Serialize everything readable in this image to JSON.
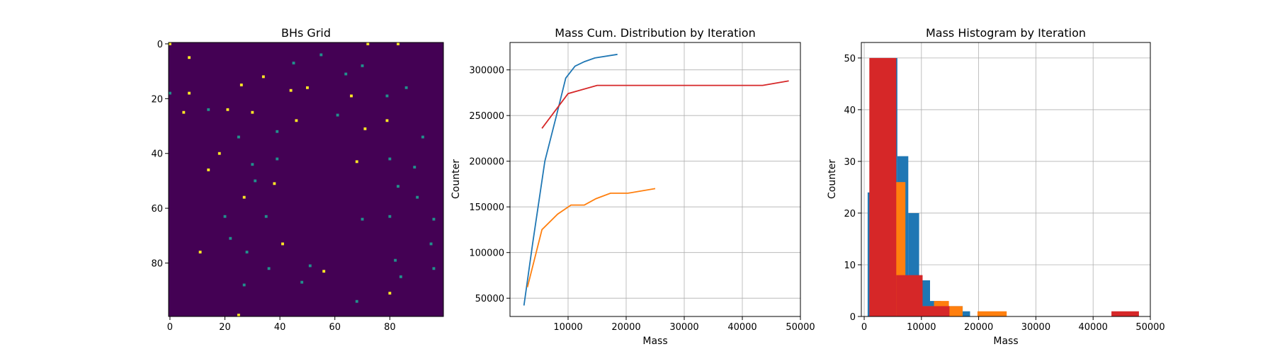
{
  "figure": {
    "background": "#ffffff"
  },
  "chart_data": [
    {
      "type": "heatmap",
      "title": "BHs Grid",
      "grid_size": 100,
      "xlim": [
        0,
        99
      ],
      "ylim": [
        99,
        0
      ],
      "xticks": [
        0,
        20,
        40,
        60,
        80
      ],
      "yticks": [
        0,
        20,
        40,
        60,
        80
      ],
      "background_color": "#440154",
      "colors": {
        "high": "#fde725",
        "mid": "#21918c"
      },
      "cells": [
        {
          "x": 0,
          "y": 0,
          "v": "high"
        },
        {
          "x": 72,
          "y": 0,
          "v": "high"
        },
        {
          "x": 83,
          "y": 0,
          "v": "high"
        },
        {
          "x": 7,
          "y": 5,
          "v": "high"
        },
        {
          "x": 55,
          "y": 4,
          "v": "mid"
        },
        {
          "x": 45,
          "y": 7,
          "v": "mid"
        },
        {
          "x": 70,
          "y": 8,
          "v": "mid"
        },
        {
          "x": 64,
          "y": 11,
          "v": "mid"
        },
        {
          "x": 34,
          "y": 12,
          "v": "high"
        },
        {
          "x": 26,
          "y": 15,
          "v": "high"
        },
        {
          "x": 50,
          "y": 16,
          "v": "high"
        },
        {
          "x": 86,
          "y": 16,
          "v": "mid"
        },
        {
          "x": 44,
          "y": 17,
          "v": "high"
        },
        {
          "x": 0,
          "y": 18,
          "v": "mid"
        },
        {
          "x": 7,
          "y": 18,
          "v": "high"
        },
        {
          "x": 66,
          "y": 19,
          "v": "high"
        },
        {
          "x": 79,
          "y": 19,
          "v": "mid"
        },
        {
          "x": 14,
          "y": 24,
          "v": "mid"
        },
        {
          "x": 21,
          "y": 24,
          "v": "high"
        },
        {
          "x": 5,
          "y": 25,
          "v": "high"
        },
        {
          "x": 30,
          "y": 25,
          "v": "high"
        },
        {
          "x": 61,
          "y": 26,
          "v": "mid"
        },
        {
          "x": 46,
          "y": 28,
          "v": "high"
        },
        {
          "x": 79,
          "y": 28,
          "v": "high"
        },
        {
          "x": 71,
          "y": 31,
          "v": "high"
        },
        {
          "x": 39,
          "y": 32,
          "v": "mid"
        },
        {
          "x": 25,
          "y": 34,
          "v": "mid"
        },
        {
          "x": 92,
          "y": 34,
          "v": "mid"
        },
        {
          "x": 18,
          "y": 40,
          "v": "high"
        },
        {
          "x": 39,
          "y": 42,
          "v": "mid"
        },
        {
          "x": 80,
          "y": 42,
          "v": "mid"
        },
        {
          "x": 68,
          "y": 43,
          "v": "high"
        },
        {
          "x": 30,
          "y": 44,
          "v": "mid"
        },
        {
          "x": 89,
          "y": 45,
          "v": "mid"
        },
        {
          "x": 14,
          "y": 46,
          "v": "high"
        },
        {
          "x": 31,
          "y": 50,
          "v": "mid"
        },
        {
          "x": 38,
          "y": 51,
          "v": "high"
        },
        {
          "x": 83,
          "y": 52,
          "v": "mid"
        },
        {
          "x": 27,
          "y": 56,
          "v": "high"
        },
        {
          "x": 90,
          "y": 56,
          "v": "mid"
        },
        {
          "x": 20,
          "y": 63,
          "v": "mid"
        },
        {
          "x": 35,
          "y": 63,
          "v": "mid"
        },
        {
          "x": 70,
          "y": 64,
          "v": "mid"
        },
        {
          "x": 80,
          "y": 63,
          "v": "mid"
        },
        {
          "x": 96,
          "y": 64,
          "v": "mid"
        },
        {
          "x": 22,
          "y": 71,
          "v": "mid"
        },
        {
          "x": 41,
          "y": 73,
          "v": "high"
        },
        {
          "x": 95,
          "y": 73,
          "v": "mid"
        },
        {
          "x": 28,
          "y": 76,
          "v": "mid"
        },
        {
          "x": 11,
          "y": 76,
          "v": "high"
        },
        {
          "x": 82,
          "y": 79,
          "v": "mid"
        },
        {
          "x": 51,
          "y": 81,
          "v": "mid"
        },
        {
          "x": 36,
          "y": 82,
          "v": "mid"
        },
        {
          "x": 56,
          "y": 83,
          "v": "high"
        },
        {
          "x": 96,
          "y": 82,
          "v": "mid"
        },
        {
          "x": 84,
          "y": 85,
          "v": "mid"
        },
        {
          "x": 48,
          "y": 87,
          "v": "mid"
        },
        {
          "x": 27,
          "y": 88,
          "v": "mid"
        },
        {
          "x": 80,
          "y": 91,
          "v": "high"
        },
        {
          "x": 68,
          "y": 94,
          "v": "mid"
        },
        {
          "x": 25,
          "y": 99,
          "v": "high"
        }
      ]
    },
    {
      "type": "line",
      "title": "Mass Cum. Distribution by Iteration",
      "xlabel": "Mass",
      "ylabel": "Counter",
      "xlim": [
        0,
        50000
      ],
      "ylim": [
        30000,
        330000
      ],
      "xticks": [
        10000,
        20000,
        30000,
        40000,
        50000
      ],
      "yticks": [
        50000,
        100000,
        150000,
        200000,
        250000,
        300000
      ],
      "grid": true,
      "series": [
        {
          "color": "#1f77b4",
          "x": [
            2400,
            3900,
            6000,
            8000,
            9600,
            11200,
            12800,
            14600,
            18500
          ],
          "y": [
            42000,
            110000,
            200000,
            250000,
            291000,
            304000,
            309000,
            313000,
            317000
          ]
        },
        {
          "color": "#ff7f0e",
          "x": [
            3000,
            5500,
            8200,
            10500,
            12800,
            14800,
            17300,
            20300,
            25000
          ],
          "y": [
            62000,
            125000,
            142000,
            152000,
            152000,
            159000,
            165000,
            165000,
            170000
          ]
        },
        {
          "color": "#d62728",
          "x": [
            5500,
            10000,
            15000,
            20000,
            30000,
            43500,
            48000
          ],
          "y": [
            236000,
            274000,
            283000,
            283000,
            283000,
            283000,
            288000
          ]
        }
      ]
    },
    {
      "type": "bar",
      "title": "Mass Histogram by Iteration",
      "xlabel": "Mass",
      "ylabel": "Counter",
      "xlim": [
        -500,
        50000
      ],
      "ylim": [
        0,
        53
      ],
      "xticks": [
        0,
        10000,
        20000,
        30000,
        40000,
        50000
      ],
      "yticks": [
        0,
        10,
        20,
        30,
        40,
        50
      ],
      "grid": true,
      "series": [
        {
          "color": "#1f77b4",
          "bins": [
            {
              "x0": 600,
              "x1": 1000,
              "value": 24
            },
            {
              "x0": 1000,
              "x1": 5800,
              "value": 50
            },
            {
              "x0": 5800,
              "x1": 7700,
              "value": 31
            },
            {
              "x0": 7700,
              "x1": 9600,
              "value": 20
            },
            {
              "x0": 9600,
              "x1": 11500,
              "value": 7
            },
            {
              "x0": 11500,
              "x1": 13400,
              "value": 3
            },
            {
              "x0": 13400,
              "x1": 15300,
              "value": 2
            },
            {
              "x0": 15300,
              "x1": 17200,
              "value": 2
            },
            {
              "x0": 17200,
              "x1": 18500,
              "value": 1
            }
          ]
        },
        {
          "color": "#ff7f0e",
          "bins": [
            {
              "x0": 5500,
              "x1": 7200,
              "value": 26
            },
            {
              "x0": 9800,
              "x1": 12200,
              "value": 2
            },
            {
              "x0": 12200,
              "x1": 14800,
              "value": 3
            },
            {
              "x0": 14800,
              "x1": 17200,
              "value": 2
            },
            {
              "x0": 19800,
              "x1": 24900,
              "value": 1
            }
          ]
        },
        {
          "color": "#d62728",
          "bins": [
            {
              "x0": 900,
              "x1": 5600,
              "value": 50
            },
            {
              "x0": 5600,
              "x1": 10200,
              "value": 8
            },
            {
              "x0": 10200,
              "x1": 14900,
              "value": 2
            },
            {
              "x0": 43200,
              "x1": 48000,
              "value": 1
            }
          ]
        }
      ]
    }
  ]
}
